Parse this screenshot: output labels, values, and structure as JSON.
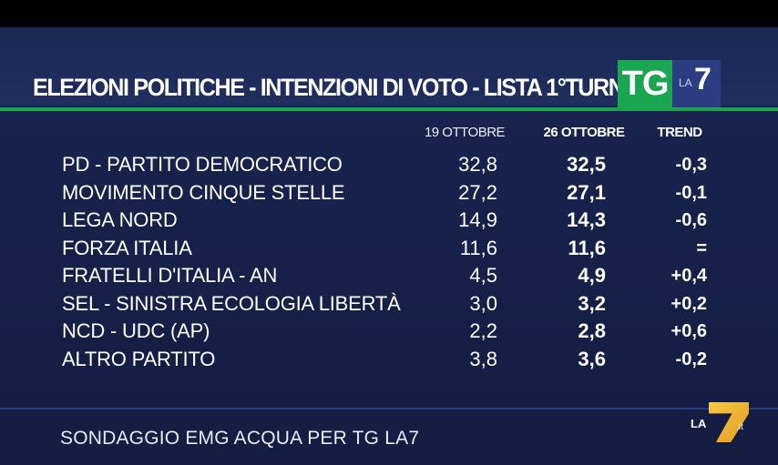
{
  "header": {
    "title": "ELEZIONI POLITICHE - INTENZIONI DI VOTO - LISTA 1°TURNO",
    "logo_tg": "TG",
    "logo_la": "LA",
    "logo_seven": "7"
  },
  "chart_data": {
    "type": "table",
    "title": "ELEZIONI POLITICHE - INTENZIONI DI VOTO - LISTA 1°TURNO",
    "columns": [
      "19 OTTOBRE",
      "26 OTTOBRE",
      "TREND"
    ],
    "rows": [
      {
        "party": "PD - PARTITO DEMOCRATICO",
        "v1": "32,8",
        "v2": "32,5",
        "trend": "-0,3"
      },
      {
        "party": "MOVIMENTO CINQUE STELLE",
        "v1": "27,2",
        "v2": "27,1",
        "trend": "-0,1"
      },
      {
        "party": "LEGA NORD",
        "v1": "14,9",
        "v2": "14,3",
        "trend": "-0,6"
      },
      {
        "party": "FORZA ITALIA",
        "v1": "11,6",
        "v2": "11,6",
        "trend": "="
      },
      {
        "party": "FRATELLI D'ITALIA - AN",
        "v1": "4,5",
        "v2": "4,9",
        "trend": "+0,4"
      },
      {
        "party": "SEL - SINISTRA ECOLOGIA LIBERTÀ",
        "v1": "3,0",
        "v2": "3,2",
        "trend": "+0,2"
      },
      {
        "party": "NCD - UDC (AP)",
        "v1": "2,2",
        "v2": "2,8",
        "trend": "+0,6"
      },
      {
        "party": "ALTRO PARTITO",
        "v1": "3,8",
        "v2": "3,6",
        "trend": "-0,2"
      }
    ]
  },
  "footer": {
    "source": "SONDAGGIO EMG ACQUA PER TG LA7",
    "watermark_la": "LA",
    "watermark_it": ".it"
  },
  "colors": {
    "background": "#16214a",
    "accent_green": "#1aa651",
    "logo_blue": "#2c3d82",
    "text": "#ffffff"
  }
}
